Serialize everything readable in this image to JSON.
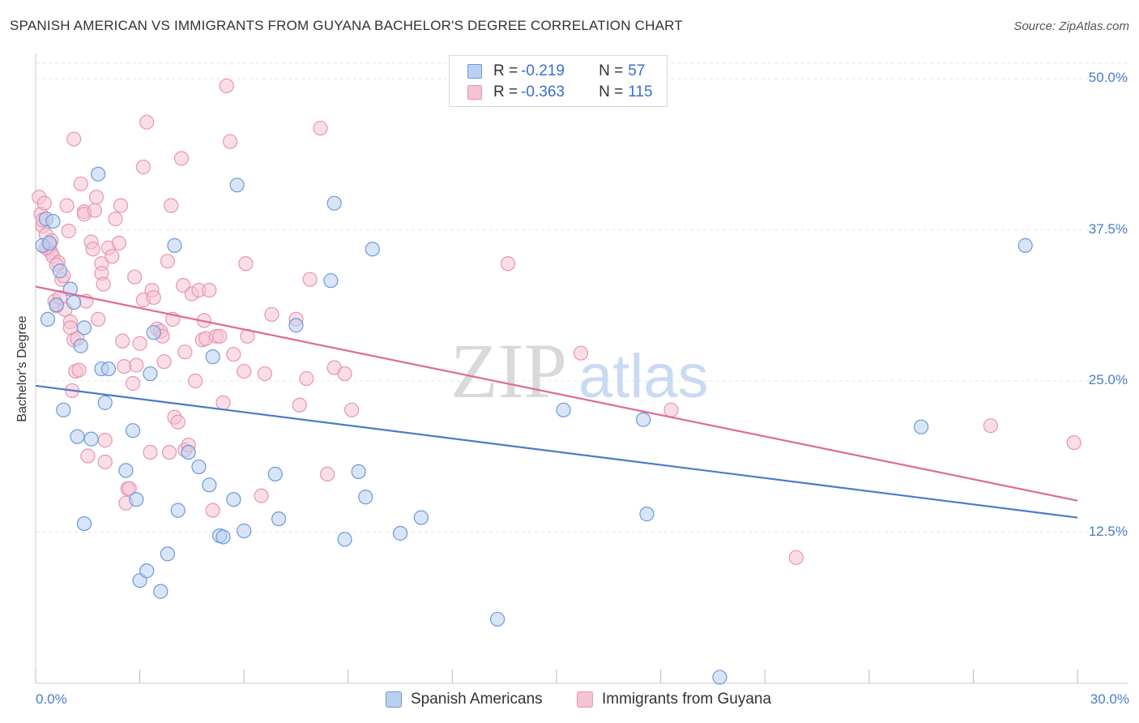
{
  "title": "SPANISH AMERICAN VS IMMIGRANTS FROM GUYANA BACHELOR'S DEGREE CORRELATION CHART",
  "source": "Source: ZipAtlas.com",
  "watermark": {
    "zip": "ZIP",
    "atlas": "atlas"
  },
  "colors": {
    "blue": "#4a7cc9",
    "blue_fill": "#b9d0f0",
    "blue_stroke": "#6a9ad9",
    "pink": "#e06a95",
    "pink_fill": "#f5c3d4",
    "pink_stroke": "#e895b3",
    "grid": "#e3e3e3",
    "axis_text": "#4a7cc9"
  },
  "legend": {
    "rows": [
      {
        "r_label": "R = ",
        "r_value": "-0.219",
        "n_label": "N = ",
        "n_value": "57",
        "color": "blue"
      },
      {
        "r_label": "R = ",
        "r_value": "-0.363",
        "n_label": "N = ",
        "n_value": "115",
        "color": "pink"
      }
    ]
  },
  "bottom_legend": [
    "Spanish Americans",
    "Immigrants from Guyana"
  ],
  "chart_data": {
    "type": "scatter",
    "title": "SPANISH AMERICAN VS IMMIGRANTS FROM GUYANA BACHELOR'S DEGREE CORRELATION CHART",
    "xlabel": "",
    "ylabel": "Bachelor's Degree",
    "xlim": [
      0,
      30
    ],
    "ylim": [
      0,
      50
    ],
    "x_tick_labels": [
      "0.0%",
      "30.0%"
    ],
    "y_tick_labels": [
      "12.5%",
      "25.0%",
      "37.5%",
      "50.0%"
    ],
    "y_ticks": [
      12.5,
      25.0,
      37.5,
      50.0
    ],
    "grid": true,
    "series": [
      {
        "name": "Spanish Americans",
        "color": "blue",
        "trend": {
          "x": [
            0,
            30
          ],
          "y": [
            24.6,
            13.7
          ]
        },
        "points": [
          [
            0.2,
            36.2
          ],
          [
            0.3,
            38.4
          ],
          [
            0.4,
            36.4
          ],
          [
            0.35,
            30.1
          ],
          [
            0.6,
            31.3
          ],
          [
            0.7,
            34.1
          ],
          [
            0.8,
            22.6
          ],
          [
            1.0,
            32.6
          ],
          [
            1.1,
            31.5
          ],
          [
            1.2,
            20.4
          ],
          [
            1.3,
            27.9
          ],
          [
            1.4,
            29.4
          ],
          [
            1.4,
            13.2
          ],
          [
            1.6,
            20.2
          ],
          [
            1.8,
            42.1
          ],
          [
            1.9,
            26.0
          ],
          [
            2.0,
            23.2
          ],
          [
            2.1,
            26.0
          ],
          [
            2.6,
            17.6
          ],
          [
            2.8,
            20.9
          ],
          [
            2.9,
            15.2
          ],
          [
            3.0,
            8.5
          ],
          [
            3.2,
            9.3
          ],
          [
            3.3,
            25.6
          ],
          [
            3.4,
            29.0
          ],
          [
            3.6,
            7.6
          ],
          [
            3.8,
            10.7
          ],
          [
            4.0,
            36.2
          ],
          [
            4.1,
            14.3
          ],
          [
            4.4,
            19.1
          ],
          [
            4.7,
            17.9
          ],
          [
            5.0,
            16.4
          ],
          [
            5.1,
            27.0
          ],
          [
            5.3,
            12.2
          ],
          [
            5.4,
            12.1
          ],
          [
            5.7,
            15.2
          ],
          [
            5.8,
            41.2
          ],
          [
            6.0,
            12.6
          ],
          [
            6.9,
            17.3
          ],
          [
            7.0,
            13.6
          ],
          [
            7.5,
            29.6
          ],
          [
            8.5,
            33.3
          ],
          [
            8.6,
            39.7
          ],
          [
            8.9,
            11.9
          ],
          [
            9.3,
            17.5
          ],
          [
            9.5,
            15.4
          ],
          [
            9.7,
            35.9
          ],
          [
            10.5,
            12.4
          ],
          [
            11.1,
            13.7
          ],
          [
            13.3,
            5.3
          ],
          [
            15.2,
            22.6
          ],
          [
            17.5,
            21.8
          ],
          [
            17.6,
            14.0
          ],
          [
            19.7,
            0.5
          ],
          [
            25.5,
            21.2
          ],
          [
            28.5,
            36.2
          ],
          [
            0.5,
            38.2
          ]
        ]
      },
      {
        "name": "Immigrants from Guyana",
        "color": "pink",
        "trend": {
          "x": [
            0,
            30
          ],
          "y": [
            32.8,
            15.1
          ]
        },
        "points": [
          [
            0.1,
            40.2
          ],
          [
            0.15,
            38.8
          ],
          [
            0.2,
            37.8
          ],
          [
            0.25,
            39.7
          ],
          [
            0.3,
            37.1
          ],
          [
            0.35,
            35.9
          ],
          [
            0.4,
            36.2
          ],
          [
            0.45,
            35.6
          ],
          [
            0.5,
            35.3
          ],
          [
            0.55,
            31.6
          ],
          [
            0.6,
            31.2
          ],
          [
            0.65,
            34.8
          ],
          [
            0.7,
            31.9
          ],
          [
            0.75,
            33.4
          ],
          [
            0.8,
            33.7
          ],
          [
            0.85,
            30.9
          ],
          [
            0.9,
            39.5
          ],
          [
            0.95,
            37.4
          ],
          [
            1.0,
            29.9
          ],
          [
            1.0,
            29.4
          ],
          [
            1.05,
            24.2
          ],
          [
            1.1,
            28.4
          ],
          [
            1.1,
            45.0
          ],
          [
            1.15,
            25.8
          ],
          [
            1.2,
            28.5
          ],
          [
            1.3,
            41.3
          ],
          [
            1.4,
            39.0
          ],
          [
            1.4,
            38.8
          ],
          [
            1.45,
            31.6
          ],
          [
            1.5,
            18.8
          ],
          [
            1.6,
            36.5
          ],
          [
            1.65,
            35.9
          ],
          [
            1.7,
            39.1
          ],
          [
            1.75,
            40.2
          ],
          [
            1.8,
            30.1
          ],
          [
            1.9,
            34.7
          ],
          [
            1.9,
            33.9
          ],
          [
            1.95,
            33.0
          ],
          [
            2.0,
            20.1
          ],
          [
            2.0,
            18.3
          ],
          [
            2.1,
            36.0
          ],
          [
            2.2,
            35.3
          ],
          [
            2.3,
            38.4
          ],
          [
            2.4,
            36.4
          ],
          [
            2.45,
            39.5
          ],
          [
            2.5,
            28.3
          ],
          [
            2.55,
            26.2
          ],
          [
            2.6,
            14.9
          ],
          [
            2.65,
            16.1
          ],
          [
            2.7,
            16.1
          ],
          [
            2.8,
            24.8
          ],
          [
            2.85,
            33.6
          ],
          [
            2.9,
            26.3
          ],
          [
            3.0,
            28.1
          ],
          [
            3.1,
            31.7
          ],
          [
            3.1,
            42.7
          ],
          [
            3.2,
            46.4
          ],
          [
            3.3,
            19.1
          ],
          [
            3.35,
            32.5
          ],
          [
            3.4,
            31.9
          ],
          [
            3.5,
            29.3
          ],
          [
            3.6,
            29.1
          ],
          [
            3.65,
            28.7
          ],
          [
            3.7,
            26.6
          ],
          [
            3.8,
            34.9
          ],
          [
            3.85,
            19.1
          ],
          [
            3.9,
            39.5
          ],
          [
            3.95,
            30.1
          ],
          [
            4.0,
            22.0
          ],
          [
            4.1,
            21.6
          ],
          [
            4.2,
            43.4
          ],
          [
            4.25,
            32.9
          ],
          [
            4.3,
            19.3
          ],
          [
            4.3,
            27.4
          ],
          [
            4.4,
            19.7
          ],
          [
            4.5,
            32.2
          ],
          [
            4.6,
            25.0
          ],
          [
            4.7,
            32.5
          ],
          [
            4.8,
            28.4
          ],
          [
            4.85,
            30.0
          ],
          [
            4.9,
            28.5
          ],
          [
            5.0,
            32.5
          ],
          [
            5.1,
            14.3
          ],
          [
            5.2,
            28.7
          ],
          [
            5.3,
            28.7
          ],
          [
            5.4,
            23.2
          ],
          [
            5.5,
            49.4
          ],
          [
            5.6,
            44.8
          ],
          [
            5.7,
            27.2
          ],
          [
            6.0,
            25.8
          ],
          [
            6.05,
            34.7
          ],
          [
            6.1,
            28.7
          ],
          [
            6.5,
            15.5
          ],
          [
            6.6,
            25.6
          ],
          [
            6.8,
            30.5
          ],
          [
            7.5,
            30.1
          ],
          [
            7.6,
            23.0
          ],
          [
            7.8,
            25.2
          ],
          [
            7.9,
            33.4
          ],
          [
            8.4,
            17.3
          ],
          [
            8.2,
            45.9
          ],
          [
            8.6,
            26.1
          ],
          [
            8.9,
            25.6
          ],
          [
            9.1,
            22.6
          ],
          [
            13.6,
            34.7
          ],
          [
            15.7,
            27.3
          ],
          [
            18.3,
            22.6
          ],
          [
            21.9,
            10.4
          ],
          [
            27.5,
            21.3
          ],
          [
            29.9,
            19.9
          ],
          [
            0.2,
            38.3
          ],
          [
            0.3,
            36.0
          ],
          [
            0.45,
            36.6
          ],
          [
            0.6,
            34.6
          ],
          [
            1.25,
            25.9
          ]
        ]
      }
    ]
  }
}
